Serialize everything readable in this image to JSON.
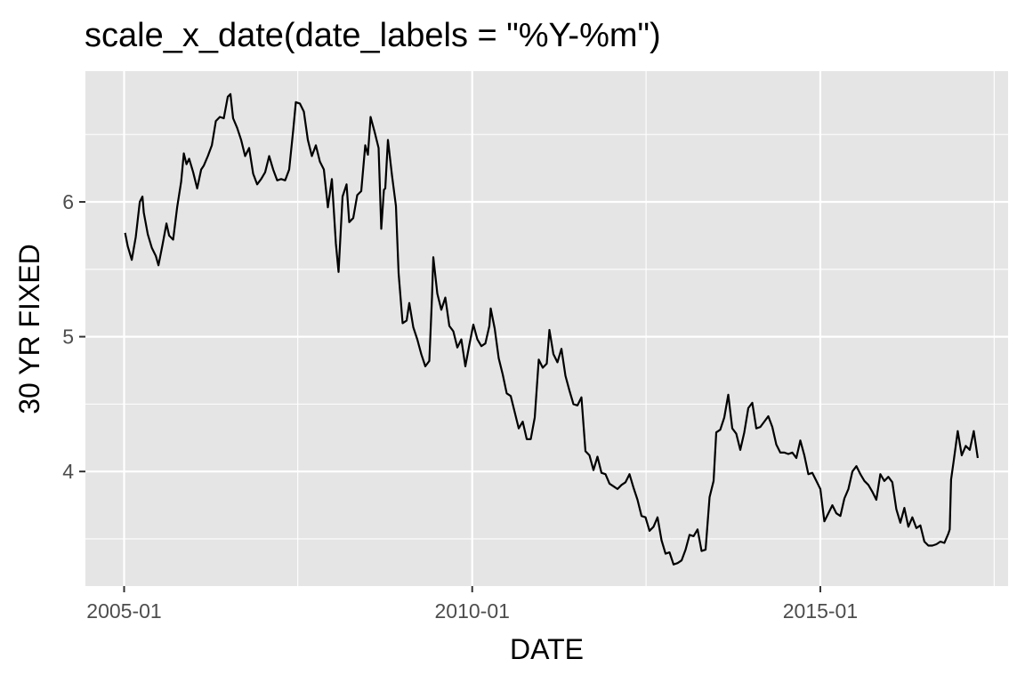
{
  "chart_data": {
    "type": "line",
    "title": "scale_x_date(date_labels = \"%Y-%m\")",
    "xlabel": "DATE",
    "ylabel": "30 YR FIXED",
    "x_scale": "date",
    "xlim": [
      "2004-06-12",
      "2017-09-12"
    ],
    "ylim": [
      3.15,
      6.97
    ],
    "x_ticks": [
      "2005-01-01",
      "2010-01-01",
      "2015-01-01"
    ],
    "x_tick_labels": [
      "2005-01",
      "2010-01",
      "2015-01"
    ],
    "x_minor_ticks": [
      "2007-07-01",
      "2012-07-01",
      "2017-07-01"
    ],
    "y_ticks": [
      4,
      5,
      6
    ],
    "y_tick_labels": [
      "4",
      "5",
      "6"
    ],
    "y_minor_ticks": [
      3.5,
      4.5,
      5.5,
      6.5
    ],
    "grid": true,
    "legend": "none",
    "colors": {
      "panel": "#e5e5e5",
      "grid": "#ffffff",
      "line": "#000000",
      "tick_text": "#4d4d4d"
    },
    "series": [
      {
        "points": [
          [
            "2005-01-06",
            5.77
          ],
          [
            "2005-01-20",
            5.67
          ],
          [
            "2005-02-10",
            5.57
          ],
          [
            "2005-03-03",
            5.74
          ],
          [
            "2005-03-24",
            6.0
          ],
          [
            "2005-04-07",
            6.04
          ],
          [
            "2005-04-14",
            5.92
          ],
          [
            "2005-05-05",
            5.76
          ],
          [
            "2005-05-26",
            5.66
          ],
          [
            "2005-06-16",
            5.6
          ],
          [
            "2005-06-30",
            5.53
          ],
          [
            "2005-07-21",
            5.68
          ],
          [
            "2005-08-11",
            5.84
          ],
          [
            "2005-08-25",
            5.75
          ],
          [
            "2005-09-15",
            5.72
          ],
          [
            "2005-10-06",
            5.96
          ],
          [
            "2005-10-27",
            6.15
          ],
          [
            "2005-11-10",
            6.36
          ],
          [
            "2005-11-24",
            6.28
          ],
          [
            "2005-12-08",
            6.32
          ],
          [
            "2005-12-29",
            6.22
          ],
          [
            "2006-01-19",
            6.1
          ],
          [
            "2006-02-09",
            6.24
          ],
          [
            "2006-02-23",
            6.27
          ],
          [
            "2006-03-16",
            6.34
          ],
          [
            "2006-04-06",
            6.42
          ],
          [
            "2006-04-27",
            6.6
          ],
          [
            "2006-05-18",
            6.63
          ],
          [
            "2006-06-08",
            6.62
          ],
          [
            "2006-06-29",
            6.78
          ],
          [
            "2006-07-13",
            6.8
          ],
          [
            "2006-07-27",
            6.62
          ],
          [
            "2006-08-17",
            6.55
          ],
          [
            "2006-09-07",
            6.46
          ],
          [
            "2006-09-28",
            6.34
          ],
          [
            "2006-10-19",
            6.4
          ],
          [
            "2006-11-09",
            6.21
          ],
          [
            "2006-11-30",
            6.13
          ],
          [
            "2006-12-21",
            6.17
          ],
          [
            "2007-01-11",
            6.22
          ],
          [
            "2007-02-01",
            6.34
          ],
          [
            "2007-02-22",
            6.24
          ],
          [
            "2007-03-15",
            6.16
          ],
          [
            "2007-04-05",
            6.17
          ],
          [
            "2007-04-26",
            6.16
          ],
          [
            "2007-05-17",
            6.24
          ],
          [
            "2007-06-07",
            6.53
          ],
          [
            "2007-06-21",
            6.74
          ],
          [
            "2007-07-12",
            6.73
          ],
          [
            "2007-08-02",
            6.67
          ],
          [
            "2007-08-23",
            6.46
          ],
          [
            "2007-09-13",
            6.34
          ],
          [
            "2007-10-04",
            6.42
          ],
          [
            "2007-10-25",
            6.3
          ],
          [
            "2007-11-15",
            6.24
          ],
          [
            "2007-12-06",
            5.96
          ],
          [
            "2007-12-27",
            6.17
          ],
          [
            "2008-01-17",
            5.69
          ],
          [
            "2008-01-31",
            5.48
          ],
          [
            "2008-02-21",
            6.04
          ],
          [
            "2008-03-13",
            6.13
          ],
          [
            "2008-03-27",
            5.85
          ],
          [
            "2008-04-17",
            5.88
          ],
          [
            "2008-05-08",
            6.05
          ],
          [
            "2008-05-29",
            6.08
          ],
          [
            "2008-06-19",
            6.42
          ],
          [
            "2008-07-03",
            6.35
          ],
          [
            "2008-07-17",
            6.63
          ],
          [
            "2008-08-07",
            6.52
          ],
          [
            "2008-08-28",
            6.4
          ],
          [
            "2008-09-11",
            5.8
          ],
          [
            "2008-09-25",
            6.09
          ],
          [
            "2008-10-02",
            6.1
          ],
          [
            "2008-10-16",
            6.46
          ],
          [
            "2008-11-06",
            6.2
          ],
          [
            "2008-11-27",
            5.97
          ],
          [
            "2008-12-11",
            5.47
          ],
          [
            "2009-01-01",
            5.1
          ],
          [
            "2009-01-22",
            5.12
          ],
          [
            "2009-02-05",
            5.25
          ],
          [
            "2009-02-26",
            5.07
          ],
          [
            "2009-03-19",
            4.98
          ],
          [
            "2009-04-09",
            4.87
          ],
          [
            "2009-04-30",
            4.78
          ],
          [
            "2009-05-21",
            4.82
          ],
          [
            "2009-06-04",
            5.29
          ],
          [
            "2009-06-11",
            5.59
          ],
          [
            "2009-07-02",
            5.32
          ],
          [
            "2009-07-23",
            5.2
          ],
          [
            "2009-08-13",
            5.29
          ],
          [
            "2009-09-03",
            5.08
          ],
          [
            "2009-09-24",
            5.04
          ],
          [
            "2009-10-15",
            4.92
          ],
          [
            "2009-11-05",
            4.98
          ],
          [
            "2009-11-26",
            4.78
          ],
          [
            "2009-12-17",
            4.94
          ],
          [
            "2010-01-07",
            5.09
          ],
          [
            "2010-01-28",
            4.98
          ],
          [
            "2010-02-18",
            4.93
          ],
          [
            "2010-03-11",
            4.95
          ],
          [
            "2010-04-01",
            5.08
          ],
          [
            "2010-04-08",
            5.21
          ],
          [
            "2010-04-29",
            5.06
          ],
          [
            "2010-05-20",
            4.84
          ],
          [
            "2010-06-10",
            4.72
          ],
          [
            "2010-07-01",
            4.58
          ],
          [
            "2010-07-22",
            4.56
          ],
          [
            "2010-08-12",
            4.44
          ],
          [
            "2010-09-02",
            4.32
          ],
          [
            "2010-09-23",
            4.37
          ],
          [
            "2010-10-14",
            4.24
          ],
          [
            "2010-11-04",
            4.24
          ],
          [
            "2010-11-25",
            4.4
          ],
          [
            "2010-12-16",
            4.83
          ],
          [
            "2011-01-06",
            4.77
          ],
          [
            "2011-01-27",
            4.8
          ],
          [
            "2011-02-10",
            5.05
          ],
          [
            "2011-03-03",
            4.87
          ],
          [
            "2011-03-24",
            4.81
          ],
          [
            "2011-04-14",
            4.91
          ],
          [
            "2011-05-05",
            4.71
          ],
          [
            "2011-05-26",
            4.6
          ],
          [
            "2011-06-16",
            4.5
          ],
          [
            "2011-07-07",
            4.49
          ],
          [
            "2011-07-28",
            4.55
          ],
          [
            "2011-08-18",
            4.15
          ],
          [
            "2011-09-08",
            4.12
          ],
          [
            "2011-09-29",
            4.01
          ],
          [
            "2011-10-20",
            4.11
          ],
          [
            "2011-11-10",
            3.99
          ],
          [
            "2011-12-01",
            3.98
          ],
          [
            "2011-12-22",
            3.91
          ],
          [
            "2012-01-12",
            3.89
          ],
          [
            "2012-02-02",
            3.87
          ],
          [
            "2012-02-23",
            3.9
          ],
          [
            "2012-03-15",
            3.92
          ],
          [
            "2012-04-05",
            3.98
          ],
          [
            "2012-04-26",
            3.88
          ],
          [
            "2012-05-17",
            3.79
          ],
          [
            "2012-06-07",
            3.67
          ],
          [
            "2012-06-28",
            3.66
          ],
          [
            "2012-07-19",
            3.56
          ],
          [
            "2012-08-09",
            3.59
          ],
          [
            "2012-08-30",
            3.66
          ],
          [
            "2012-09-20",
            3.49
          ],
          [
            "2012-10-11",
            3.39
          ],
          [
            "2012-11-01",
            3.4
          ],
          [
            "2012-11-22",
            3.31
          ],
          [
            "2012-12-13",
            3.32
          ],
          [
            "2013-01-03",
            3.34
          ],
          [
            "2013-01-24",
            3.42
          ],
          [
            "2013-02-14",
            3.53
          ],
          [
            "2013-03-07",
            3.52
          ],
          [
            "2013-03-28",
            3.57
          ],
          [
            "2013-04-18",
            3.41
          ],
          [
            "2013-05-09",
            3.42
          ],
          [
            "2013-05-30",
            3.81
          ],
          [
            "2013-06-20",
            3.93
          ],
          [
            "2013-07-04",
            4.29
          ],
          [
            "2013-07-25",
            4.31
          ],
          [
            "2013-08-15",
            4.4
          ],
          [
            "2013-09-05",
            4.57
          ],
          [
            "2013-09-26",
            4.32
          ],
          [
            "2013-10-17",
            4.28
          ],
          [
            "2013-11-07",
            4.16
          ],
          [
            "2013-11-28",
            4.29
          ],
          [
            "2013-12-19",
            4.47
          ],
          [
            "2014-01-09",
            4.51
          ],
          [
            "2014-01-30",
            4.32
          ],
          [
            "2014-02-20",
            4.33
          ],
          [
            "2014-03-13",
            4.37
          ],
          [
            "2014-04-03",
            4.41
          ],
          [
            "2014-04-24",
            4.33
          ],
          [
            "2014-05-15",
            4.2
          ],
          [
            "2014-06-05",
            4.14
          ],
          [
            "2014-06-26",
            4.14
          ],
          [
            "2014-07-17",
            4.13
          ],
          [
            "2014-08-07",
            4.14
          ],
          [
            "2014-08-28",
            4.1
          ],
          [
            "2014-09-18",
            4.23
          ],
          [
            "2014-10-09",
            4.12
          ],
          [
            "2014-10-30",
            3.98
          ],
          [
            "2014-11-20",
            3.99
          ],
          [
            "2014-12-11",
            3.93
          ],
          [
            "2015-01-01",
            3.87
          ],
          [
            "2015-01-22",
            3.63
          ],
          [
            "2015-02-12",
            3.69
          ],
          [
            "2015-03-05",
            3.75
          ],
          [
            "2015-03-26",
            3.69
          ],
          [
            "2015-04-16",
            3.67
          ],
          [
            "2015-05-07",
            3.8
          ],
          [
            "2015-05-28",
            3.87
          ],
          [
            "2015-06-18",
            4.0
          ],
          [
            "2015-07-09",
            4.04
          ],
          [
            "2015-07-30",
            3.98
          ],
          [
            "2015-08-20",
            3.93
          ],
          [
            "2015-09-10",
            3.9
          ],
          [
            "2015-10-01",
            3.85
          ],
          [
            "2015-10-22",
            3.79
          ],
          [
            "2015-11-12",
            3.98
          ],
          [
            "2015-12-03",
            3.93
          ],
          [
            "2015-12-24",
            3.96
          ],
          [
            "2016-01-14",
            3.92
          ],
          [
            "2016-02-04",
            3.72
          ],
          [
            "2016-02-25",
            3.62
          ],
          [
            "2016-03-17",
            3.73
          ],
          [
            "2016-04-07",
            3.59
          ],
          [
            "2016-04-28",
            3.66
          ],
          [
            "2016-05-19",
            3.58
          ],
          [
            "2016-06-09",
            3.6
          ],
          [
            "2016-06-30",
            3.48
          ],
          [
            "2016-07-21",
            3.45
          ],
          [
            "2016-08-11",
            3.45
          ],
          [
            "2016-09-01",
            3.46
          ],
          [
            "2016-09-22",
            3.48
          ],
          [
            "2016-10-13",
            3.47
          ],
          [
            "2016-11-03",
            3.54
          ],
          [
            "2016-11-10",
            3.57
          ],
          [
            "2016-11-17",
            3.94
          ],
          [
            "2016-12-01",
            4.08
          ],
          [
            "2016-12-22",
            4.3
          ],
          [
            "2017-01-12",
            4.12
          ],
          [
            "2017-02-02",
            4.19
          ],
          [
            "2017-02-23",
            4.16
          ],
          [
            "2017-03-16",
            4.3
          ],
          [
            "2017-04-06",
            4.1
          ]
        ]
      }
    ]
  }
}
